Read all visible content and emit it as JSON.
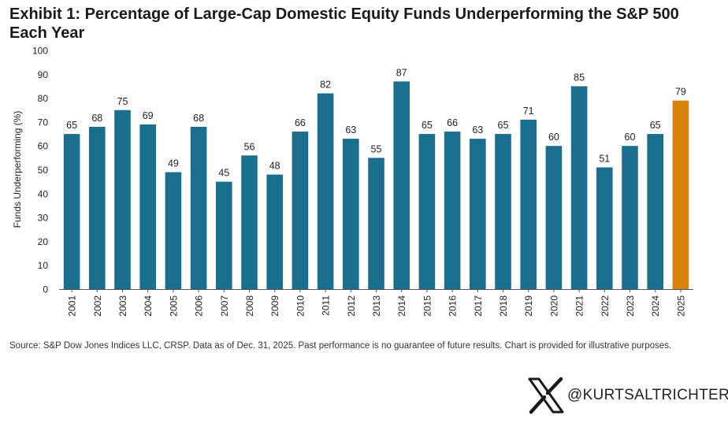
{
  "title": "Exhibit 1: Percentage of Large-Cap Domestic Equity Funds Underperforming the S&P 500 Each Year",
  "source_note": "Source: S&P Dow Jones Indices LLC, CRSP.  Data as of Dec. 31, 2025.  Past performance is no guarantee of future results.  Chart is provided for illustrative purposes.",
  "watermark": {
    "handle": "@KURTSALTRICHTER",
    "icon": "x-logo-icon"
  },
  "colors": {
    "bar": "#1b6f8e",
    "highlight": "#d8820a",
    "axis": "#555555",
    "text": "#222222"
  },
  "chart_data": {
    "type": "bar",
    "title": "Exhibit 1: Percentage of Large-Cap Domestic Equity Funds Underperforming the S&P 500 Each Year",
    "xlabel": "",
    "ylabel": "Funds Underperforming (%)",
    "ylim": [
      0,
      100
    ],
    "yticks": [
      0,
      10,
      20,
      30,
      40,
      50,
      60,
      70,
      80,
      90,
      100
    ],
    "grid": false,
    "legend": "none",
    "categories": [
      "2001",
      "2002",
      "2003",
      "2004",
      "2005",
      "2006",
      "2007",
      "2008",
      "2009",
      "2010",
      "2011",
      "2012",
      "2013",
      "2014",
      "2015",
      "2016",
      "2017",
      "2018",
      "2019",
      "2020",
      "2021",
      "2022",
      "2023",
      "2024",
      "2025"
    ],
    "values": [
      65,
      68,
      75,
      69,
      49,
      68,
      45,
      56,
      48,
      66,
      82,
      63,
      55,
      87,
      65,
      66,
      63,
      65,
      71,
      60,
      85,
      51,
      60,
      65,
      79
    ],
    "data_labels": [
      "65",
      "68",
      "75",
      "69",
      "49",
      "68",
      "45",
      "56",
      "48",
      "66",
      "82",
      "63",
      "55",
      "87",
      "65",
      "66",
      "63",
      "65",
      "71",
      "60",
      "85",
      "51",
      "60",
      "65",
      "79"
    ],
    "highlight_category": "2025"
  }
}
